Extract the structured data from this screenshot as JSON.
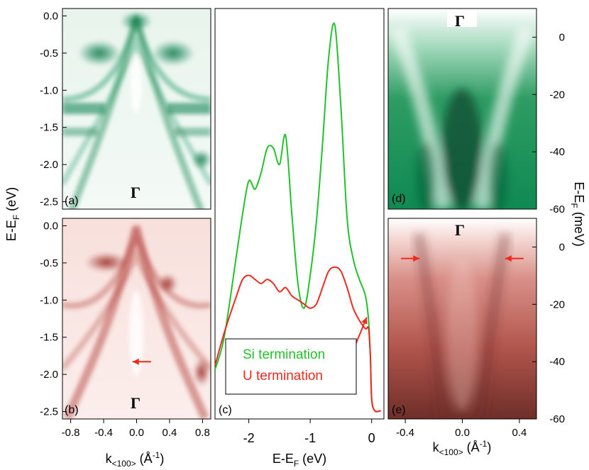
{
  "colors": {
    "green": "#22c22a",
    "red": "#ee2a1e",
    "arpes_green": "#0f8a52",
    "arpes_red": "#b04a40"
  },
  "chart_data": [
    {
      "type": "heatmap",
      "panel": "(a)",
      "label": "Γ",
      "xlim": [
        -0.9,
        0.9
      ],
      "ylim": [
        -2.6,
        0.1
      ],
      "ylabel": "E-E",
      "ylabel_sub": "F",
      "ylabel_unit": " (eV)",
      "yticks": [
        0.0,
        -0.5,
        -1.0,
        -1.5,
        -2.0,
        -2.5
      ],
      "yticklabels": [
        "0.0",
        "-0.5",
        "-1.0",
        "-1.5",
        "-2.0",
        "-2.5"
      ]
    },
    {
      "type": "heatmap",
      "panel": "(b)",
      "label": "Γ",
      "xlim": [
        -0.9,
        0.9
      ],
      "ylim": [
        -2.6,
        0.1
      ],
      "xlabel": "k",
      "xlabel_sub": "<100>",
      "xlabel_unit": " (Å",
      "xlabel_sup": "-1",
      "xlabel_close": ")",
      "xticks": [
        -0.8,
        -0.4,
        0.0,
        0.4,
        0.8
      ],
      "xticklabels": [
        "-0.8",
        "-0.4",
        "0.0",
        "0.4",
        "0.8"
      ],
      "yticks": [
        0.0,
        -0.5,
        -1.0,
        -1.5,
        -2.0,
        -2.5
      ],
      "yticklabels": [
        "0.0",
        "-0.5",
        "-1.0",
        "-1.5",
        "-2.0",
        "-2.5"
      ],
      "arrow_at": [
        -0.05,
        -1.83
      ]
    },
    {
      "type": "line",
      "panel": "(c)",
      "xlabel": "E-E",
      "xlabel_sub": "F",
      "xlabel_unit": " (eV)",
      "xlim": [
        -2.55,
        0.2
      ],
      "ylim": [
        0,
        1
      ],
      "xticks": [
        -2,
        -1,
        0
      ],
      "xticklabels": [
        "-2",
        "-1",
        "0"
      ],
      "series": [
        {
          "name": "Si termination",
          "x": [
            -2.55,
            -2.4,
            -2.2,
            -2.1,
            -2.0,
            -1.9,
            -1.8,
            -1.7,
            -1.6,
            -1.5,
            -1.4,
            -1.3,
            -1.2,
            -1.1,
            -1.0,
            -0.9,
            -0.8,
            -0.7,
            -0.6,
            -0.5,
            -0.4,
            -0.3,
            -0.2,
            -0.1,
            -0.05,
            -0.02,
            0.0,
            0.05,
            0.15
          ],
          "y": [
            0.12,
            0.2,
            0.4,
            0.5,
            0.58,
            0.56,
            0.6,
            0.66,
            0.66,
            0.62,
            0.69,
            0.5,
            0.33,
            0.27,
            0.35,
            0.48,
            0.67,
            0.88,
            0.96,
            0.76,
            0.49,
            0.39,
            0.34,
            0.3,
            0.24,
            0.15,
            0.05,
            0.02,
            0.02
          ]
        },
        {
          "name": "U termination",
          "x": [
            -2.55,
            -2.4,
            -2.2,
            -2.1,
            -2.0,
            -1.9,
            -1.8,
            -1.7,
            -1.6,
            -1.5,
            -1.4,
            -1.3,
            -1.2,
            -1.1,
            -1.0,
            -0.9,
            -0.8,
            -0.7,
            -0.6,
            -0.5,
            -0.4,
            -0.3,
            -0.2,
            -0.1,
            -0.05,
            -0.02,
            0.0,
            0.05,
            0.15
          ],
          "y": [
            0.13,
            0.21,
            0.3,
            0.34,
            0.35,
            0.34,
            0.33,
            0.34,
            0.33,
            0.31,
            0.32,
            0.3,
            0.29,
            0.28,
            0.27,
            0.28,
            0.32,
            0.36,
            0.37,
            0.36,
            0.32,
            0.27,
            0.24,
            0.22,
            0.22,
            0.15,
            0.05,
            0.02,
            0.02
          ]
        }
      ],
      "arrow_at": [
        -0.08,
        0.22
      ]
    },
    {
      "type": "heatmap",
      "panel": "(d)",
      "label": "Γ",
      "xlim": [
        -0.52,
        0.52
      ],
      "ylim": [
        -60,
        10
      ],
      "ylabel": "E-E",
      "ylabel_sub": "F",
      "ylabel_unit": " (meV)",
      "yticks": [
        0,
        -20,
        -40,
        -60
      ],
      "yticklabels": [
        "0",
        "-20",
        "-40",
        "-60"
      ]
    },
    {
      "type": "heatmap",
      "panel": "(e)",
      "label": "Γ",
      "xlim": [
        -0.52,
        0.52
      ],
      "ylim": [
        -60,
        10
      ],
      "xlabel": "k",
      "xlabel_sub": "<100>",
      "xlabel_unit": " (Å",
      "xlabel_sup": "-1",
      "xlabel_close": ")",
      "xticks": [
        -0.4,
        0.0,
        0.4
      ],
      "xticklabels": [
        "-0.4",
        "0.0",
        "0.4"
      ],
      "yticks": [
        0,
        -20,
        -40,
        -60
      ],
      "yticklabels": [
        "0",
        "-20",
        "-40",
        "-60"
      ],
      "arrows_at": [
        [
          -0.3,
          -4
        ],
        [
          0.3,
          -4
        ]
      ]
    }
  ]
}
